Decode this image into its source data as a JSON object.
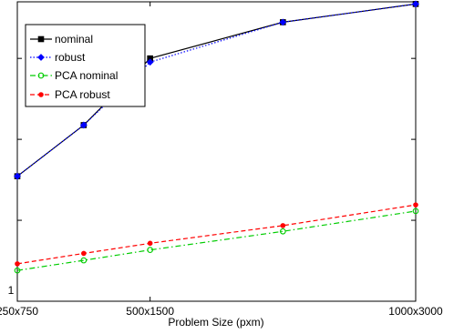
{
  "chart_data": {
    "type": "line",
    "xlabel": "Problem Size (pxm)",
    "ylabel": "",
    "title": "",
    "x_tick_labels": [
      "250x750",
      "500x1500",
      "1000x3000"
    ],
    "x": [
      250,
      375,
      500,
      750,
      1000
    ],
    "y_scale": "log",
    "ylim": [
      1,
      5000
    ],
    "y_tick_labels": [
      "1"
    ],
    "grid": false,
    "legend_position": "top-left",
    "series": [
      {
        "name": "nominal",
        "color": "#000000",
        "marker": "square",
        "line_style": "solid",
        "values": [
          35,
          150,
          1000,
          2800,
          4700
        ]
      },
      {
        "name": "robust",
        "color": "#0000ff",
        "marker": "diamond",
        "line_style": "dotted",
        "values": [
          35,
          150,
          900,
          2800,
          4700
        ]
      },
      {
        "name": "PCA nominal",
        "color": "#00cc00",
        "marker": "circle",
        "line_style": "dash-dot",
        "values": [
          2.4,
          3.2,
          4.3,
          7.3,
          13
        ]
      },
      {
        "name": "PCA robust",
        "color": "#ff0000",
        "marker": "dot",
        "line_style": "dashed",
        "values": [
          2.9,
          3.9,
          5.2,
          8.6,
          15.5
        ]
      }
    ]
  }
}
